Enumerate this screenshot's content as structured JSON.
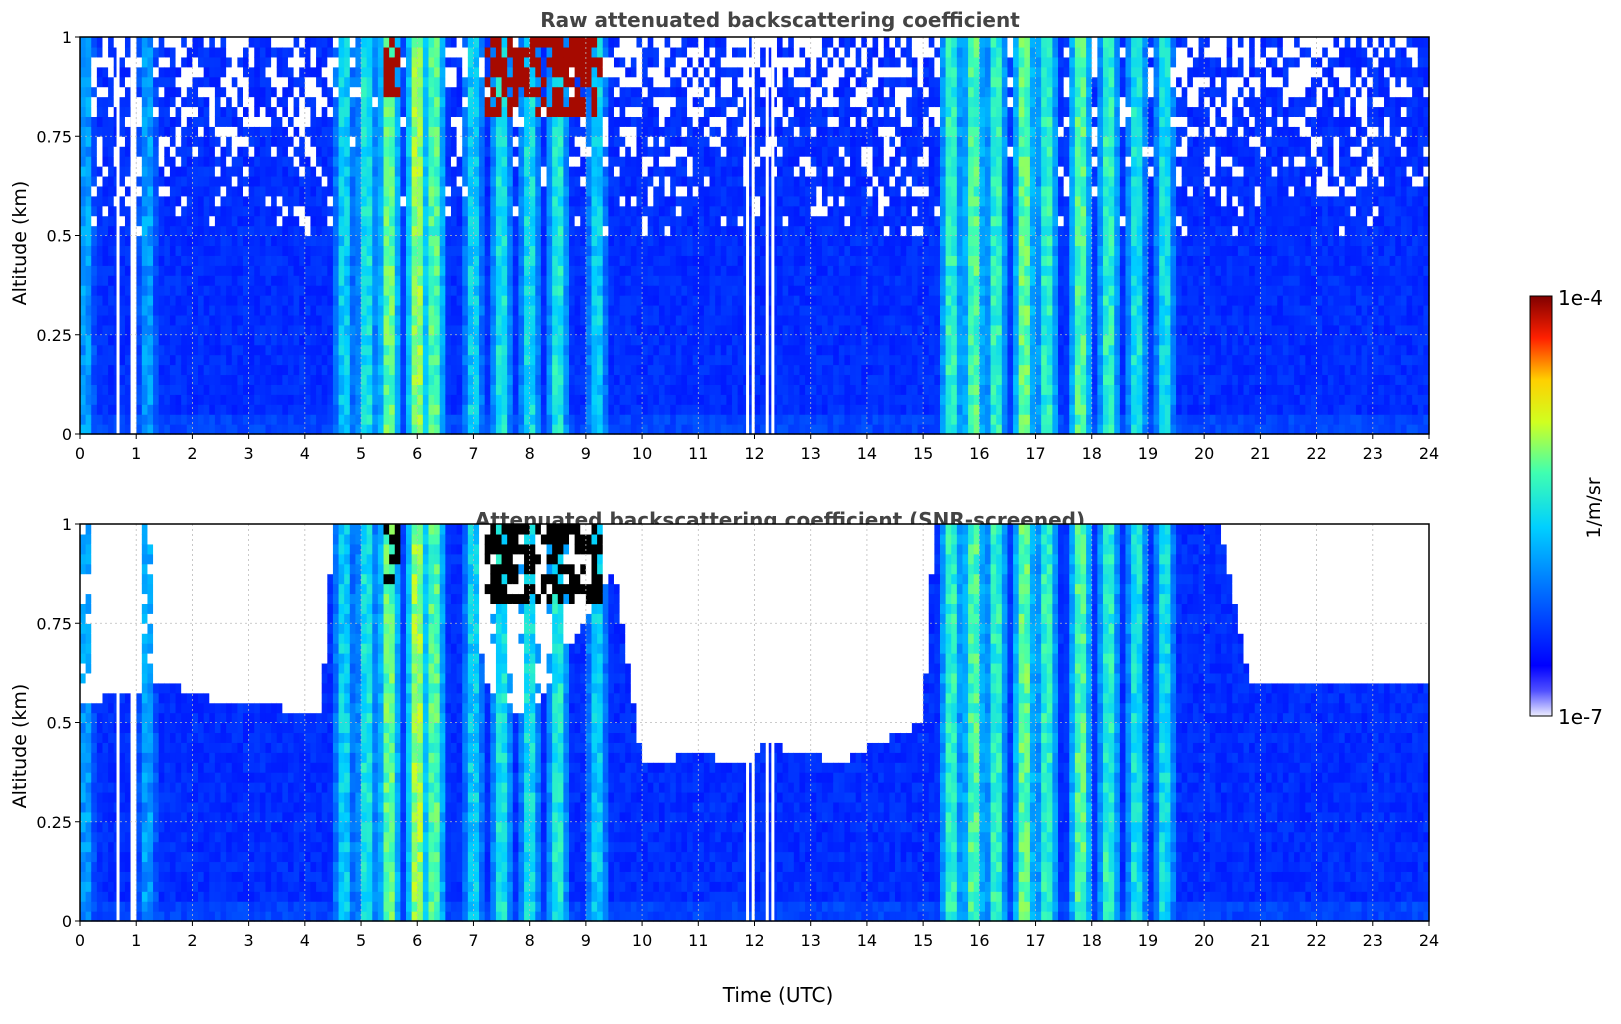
{
  "chart_data": [
    {
      "type": "heatmap",
      "title": "Raw attenuated backscattering coefficient",
      "xlabel": "",
      "ylabel": "Altitude (km)",
      "xlim": [
        0,
        24
      ],
      "ylim": [
        0,
        1
      ],
      "x_ticks": [
        "0",
        "1",
        "2",
        "3",
        "4",
        "5",
        "6",
        "7",
        "8",
        "9",
        "10",
        "11",
        "12",
        "13",
        "14",
        "15",
        "16",
        "17",
        "18",
        "19",
        "20",
        "21",
        "22",
        "23",
        "24"
      ],
      "y_ticks": [
        "0",
        "0.25",
        "0.5",
        "0.75",
        "1"
      ],
      "grid": true,
      "colormap": "jet",
      "screened": false,
      "plumes": [
        {
          "t": 5.5,
          "top": 1.0,
          "level": 0.62
        },
        {
          "t": 6.0,
          "top": 1.0,
          "level": 0.68
        },
        {
          "t": 6.3,
          "top": 1.0,
          "level": 0.6
        },
        {
          "t": 4.7,
          "top": 1.0,
          "level": 0.45
        },
        {
          "t": 5.1,
          "top": 1.0,
          "level": 0.5
        },
        {
          "t": 7.0,
          "top": 1.0,
          "level": 0.45
        },
        {
          "t": 7.5,
          "top": 1.0,
          "level": 0.5
        },
        {
          "t": 8.0,
          "top": 1.0,
          "level": 0.48
        },
        {
          "t": 8.5,
          "top": 1.0,
          "level": 0.52
        },
        {
          "t": 9.2,
          "top": 1.0,
          "level": 0.45
        },
        {
          "t": 15.5,
          "top": 1.0,
          "level": 0.55
        },
        {
          "t": 15.9,
          "top": 1.0,
          "level": 0.6
        },
        {
          "t": 16.3,
          "top": 1.0,
          "level": 0.55
        },
        {
          "t": 16.8,
          "top": 1.0,
          "level": 0.62
        },
        {
          "t": 17.2,
          "top": 1.0,
          "level": 0.55
        },
        {
          "t": 17.8,
          "top": 1.0,
          "level": 0.6
        },
        {
          "t": 18.3,
          "top": 1.0,
          "level": 0.55
        },
        {
          "t": 18.8,
          "top": 1.0,
          "level": 0.5
        },
        {
          "t": 19.3,
          "top": 1.0,
          "level": 0.48
        },
        {
          "t": 1.2,
          "top": 1.0,
          "level": 0.35
        },
        {
          "t": 0.1,
          "top": 1.0,
          "level": 0.35
        }
      ],
      "high_patches": [
        {
          "t0": 7.2,
          "t1": 9.3,
          "bottom": 0.8
        },
        {
          "t0": 5.4,
          "t1": 5.65,
          "bottom": 0.84
        }
      ],
      "gaps": [
        0.65,
        0.9,
        0.95,
        11.85,
        11.95,
        12.2,
        12.3
      ]
    },
    {
      "type": "heatmap",
      "title": "Attenuated backscattering coefficient (SNR-screened)",
      "xlabel": "Time (UTC)",
      "ylabel": "Altitude (km)",
      "xlim": [
        0,
        24
      ],
      "ylim": [
        0,
        1
      ],
      "x_ticks": [
        "0",
        "1",
        "2",
        "3",
        "4",
        "5",
        "6",
        "7",
        "8",
        "9",
        "10",
        "11",
        "12",
        "13",
        "14",
        "15",
        "16",
        "17",
        "18",
        "19",
        "20",
        "21",
        "22",
        "23",
        "24"
      ],
      "y_ticks": [
        "0",
        "0.25",
        "0.5",
        "0.75",
        "1"
      ],
      "grid": true,
      "colormap": "jet",
      "screened": true,
      "screen_boundary": [
        {
          "t": 0.0,
          "h": 0.55
        },
        {
          "t": 1.5,
          "h": 0.6
        },
        {
          "t": 2.5,
          "h": 0.55
        },
        {
          "t": 4.3,
          "h": 0.53
        },
        {
          "t": 4.5,
          "h": 1.0
        },
        {
          "t": 6.9,
          "h": 1.0
        },
        {
          "t": 7.2,
          "h": 0.6
        },
        {
          "t": 8.0,
          "h": 0.5
        },
        {
          "t": 9.5,
          "h": 0.9
        },
        {
          "t": 10.0,
          "h": 0.4
        },
        {
          "t": 11.0,
          "h": 0.42
        },
        {
          "t": 11.9,
          "h": 0.4
        },
        {
          "t": 12.2,
          "h": 0.45
        },
        {
          "t": 13.5,
          "h": 0.4
        },
        {
          "t": 14.2,
          "h": 0.45
        },
        {
          "t": 15.0,
          "h": 0.5
        },
        {
          "t": 15.2,
          "h": 1.0
        },
        {
          "t": 20.3,
          "h": 1.0
        },
        {
          "t": 20.8,
          "h": 0.6
        },
        {
          "t": 24.0,
          "h": 0.6
        }
      ]
    }
  ],
  "colorbar": {
    "max_label": "1e-4",
    "min_label": "1e-7",
    "unit_label": "1/m/sr"
  },
  "colors": {
    "title": "#444444",
    "low": "#0000ff",
    "high": "#800000",
    "saturated": "#000000"
  }
}
